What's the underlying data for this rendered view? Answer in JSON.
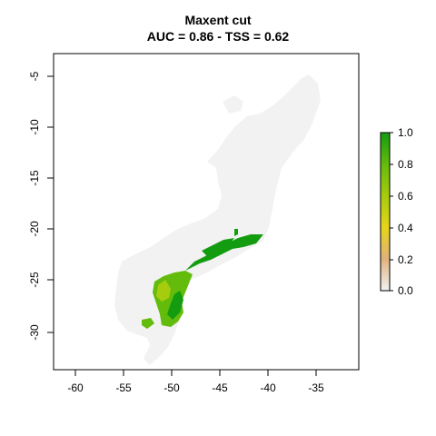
{
  "title_line1": "Maxent cut",
  "title_line2": "AUC = 0.86 - TSS = 0.62",
  "axes": {
    "x_ticks": [
      "-60",
      "-55",
      "-50",
      "-45",
      "-40",
      "-35"
    ],
    "y_ticks": [
      "-5",
      "-10",
      "-15",
      "-20",
      "-25",
      "-30"
    ]
  },
  "legend": {
    "labels": [
      "1.0",
      "0.8",
      "0.6",
      "0.4",
      "0.2",
      "0.0"
    ],
    "colors": [
      "#f2f2f2",
      "#e0b27e",
      "#e6d41a",
      "#a6cc0e",
      "#63bb0c",
      "#139c10"
    ],
    "placement": "right"
  },
  "colors": {
    "landmass": "#f2f2f2",
    "suitable_high": "#139c10",
    "suitable_mid": "#6ebe18",
    "suitable_low": "#a8cd2a"
  }
}
